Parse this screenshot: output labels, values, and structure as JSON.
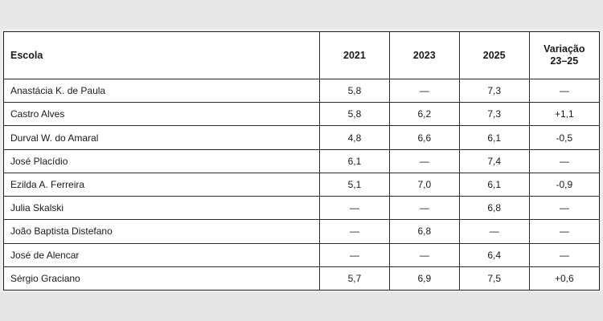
{
  "table": {
    "headers": {
      "escola": "Escola",
      "y2021": "2021",
      "y2023": "2023",
      "y2025": "2025",
      "variacao_line1": "Variação",
      "variacao_line2": "23–25"
    },
    "rows": [
      {
        "escola": "Anastácia K. de Paula",
        "y2021": "5,8",
        "y2023": "—",
        "y2025": "7,3",
        "variacao": "—"
      },
      {
        "escola": "Castro Alves",
        "y2021": "5,8",
        "y2023": "6,2",
        "y2025": "7,3",
        "variacao": "+1,1"
      },
      {
        "escola": "Durval W. do Amaral",
        "y2021": "4,8",
        "y2023": "6,6",
        "y2025": "6,1",
        "variacao": "-0,5"
      },
      {
        "escola": "José Placídio",
        "y2021": "6,1",
        "y2023": "—",
        "y2025": "7,4",
        "variacao": "—"
      },
      {
        "escola": "Ezilda A. Ferreira",
        "y2021": "5,1",
        "y2023": "7,0",
        "y2025": "6,1",
        "variacao": "-0,9"
      },
      {
        "escola": "Julia Skalski",
        "y2021": "—",
        "y2023": "—",
        "y2025": "6,8",
        "variacao": "—"
      },
      {
        "escola": "João Baptista Distefano",
        "y2021": "—",
        "y2023": "6,8",
        "y2025": "—",
        "variacao": "—"
      },
      {
        "escola": "José de Alencar",
        "y2021": "—",
        "y2023": "—",
        "y2025": "6,4",
        "variacao": "—"
      },
      {
        "escola": "Sérgio Graciano",
        "y2021": "5,7",
        "y2023": "6,9",
        "y2025": "7,5",
        "variacao": "+0,6"
      }
    ]
  }
}
